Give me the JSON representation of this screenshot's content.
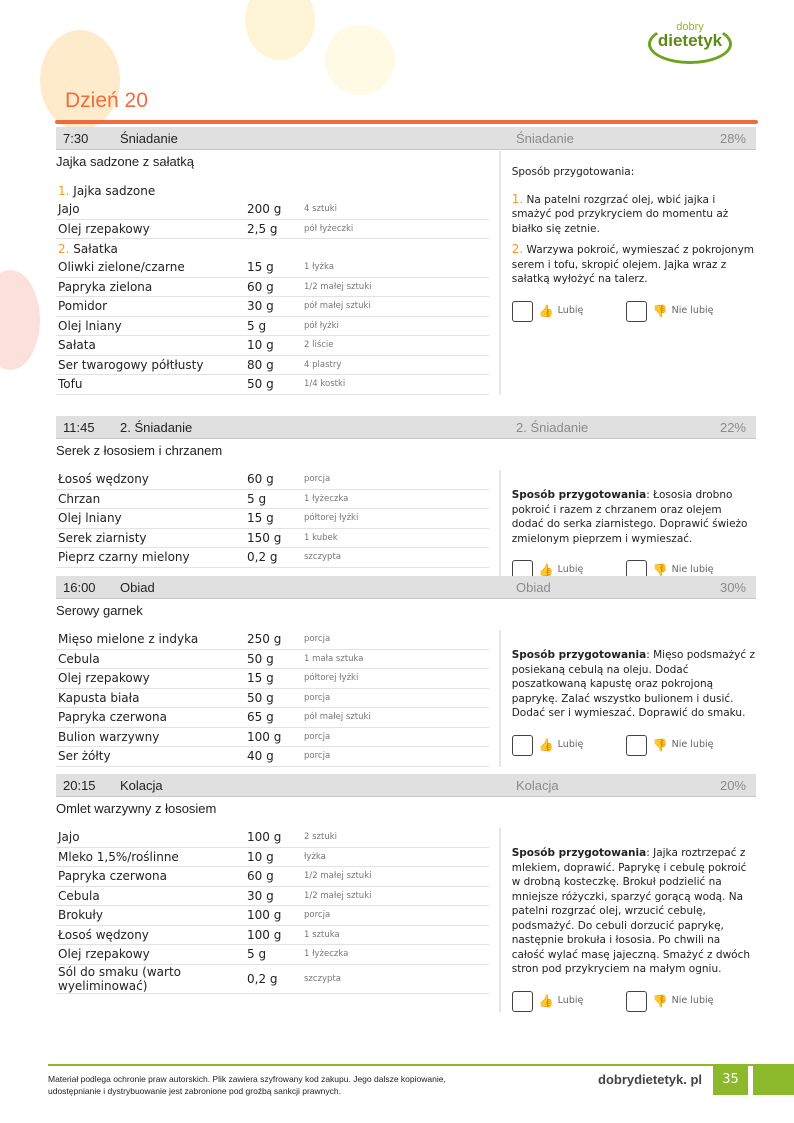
{
  "brand": {
    "logo_top": "dobry",
    "logo_bottom": "dietetyk",
    "accent": "#f26b3a",
    "green": "#8cb82b"
  },
  "page_title": "Dzień 20",
  "meals": [
    {
      "time": "7:30",
      "name": "Śniadanie",
      "category": "Śniadanie",
      "percent": "28%",
      "dish": "Jajka sadzone z sałatką",
      "groups": [
        {
          "num": "1.",
          "label": "Jajka sadzone",
          "items": [
            [
              "Jajo",
              "200 g",
              "4 sztuki"
            ],
            [
              "Olej rzepakowy",
              "2,5 g",
              "pół łyżeczki"
            ]
          ]
        },
        {
          "num": "2.",
          "label": "Sałatka",
          "items": [
            [
              "Oliwki zielone/czarne",
              "15 g",
              "1 łyżka"
            ],
            [
              "Papryka zielona",
              "60 g",
              "1/2 małej sztuki"
            ],
            [
              "Pomidor",
              "30 g",
              "pół małej sztuki"
            ],
            [
              "Olej lniany",
              "5 g",
              "pół łyżki"
            ],
            [
              "Sałata",
              "10 g",
              "2 liście"
            ],
            [
              "Ser twarogowy półtłusty",
              "80 g",
              "4 plastry"
            ],
            [
              "Tofu",
              "50 g",
              "1/4 kostki"
            ]
          ]
        }
      ],
      "prep_label": "Sposób przygotowania:",
      "prep_steps": [
        {
          "num": "1.",
          "text": "Na patelni rozgrzać olej, wbić jajka i smażyć pod przykryciem do momentu aż białko się zetnie."
        },
        {
          "num": "2.",
          "text": "Warzywa pokroić, wymieszać z pokrojonym serem i tofu, skropić olejem. Jajka wraz z sałatką wyłożyć na talerz."
        }
      ],
      "like": "Lubię",
      "dislike": "Nie lubię"
    },
    {
      "time": "11:45",
      "name": "2. Śniadanie",
      "category": "2. Śniadanie",
      "percent": "22%",
      "dish": "Serek z łososiem i chrzanem",
      "groups": [
        {
          "num": "",
          "label": "",
          "items": [
            [
              "Łosoś wędzony",
              "60 g",
              "porcja"
            ],
            [
              "Chrzan",
              "5 g",
              "1 łyżeczka"
            ],
            [
              "Olej lniany",
              "15 g",
              "półtorej łyżki"
            ],
            [
              "Serek ziarnisty",
              "150 g",
              "1 kubek"
            ],
            [
              "Pieprz czarny mielony",
              "0,2 g",
              "szczypta"
            ]
          ]
        }
      ],
      "prep_label": "Sposób przygotowania",
      "prep_text": ": Łososia drobno pokroić i razem z chrzanem oraz olejem dodać do serka ziarnistego. Doprawić świeżo zmielonym pieprzem i wymieszać.",
      "like": "Lubię",
      "dislike": "Nie lubię"
    },
    {
      "time": "16:00",
      "name": "Obiad",
      "category": "Obiad",
      "percent": "30%",
      "dish": "Serowy garnek",
      "groups": [
        {
          "num": "",
          "label": "",
          "items": [
            [
              "Mięso mielone z indyka",
              "250 g",
              "porcja"
            ],
            [
              "Cebula",
              "50 g",
              "1 mała sztuka"
            ],
            [
              "Olej rzepakowy",
              "15 g",
              "półtorej łyżki"
            ],
            [
              "Kapusta biała",
              "50 g",
              "porcja"
            ],
            [
              "Papryka czerwona",
              "65 g",
              "pół małej sztuki"
            ],
            [
              "Bulion warzywny",
              "100 g",
              "porcja"
            ],
            [
              "Ser żółty",
              "40 g",
              "porcja"
            ]
          ]
        }
      ],
      "prep_label": "Sposób przygotowania",
      "prep_text": ": Mięso podsmażyć z posiekaną cebulą na oleju. Dodać poszatkowaną kapustę oraz pokrojoną paprykę. Zalać wszystko bulionem i dusić. Dodać ser i wymieszać. Doprawić do smaku.",
      "like": "Lubię",
      "dislike": "Nie lubię"
    },
    {
      "time": "20:15",
      "name": "Kolacja",
      "category": "Kolacja",
      "percent": "20%",
      "dish": "Omlet warzywny z łososiem",
      "groups": [
        {
          "num": "",
          "label": "",
          "items": [
            [
              "Jajo",
              "100 g",
              "2 sztuki"
            ],
            [
              "Mleko 1,5%/roślinne",
              "10 g",
              "łyżka"
            ],
            [
              "Papryka czerwona",
              "60 g",
              "1/2 małej sztuki"
            ],
            [
              "Cebula",
              "30 g",
              "1/2 małej sztuki"
            ],
            [
              "Brokuły",
              "100 g",
              "porcja"
            ],
            [
              "Łosoś wędzony",
              "100 g",
              "1 sztuka"
            ],
            [
              "Olej rzepakowy",
              "5 g",
              "1 łyżeczka"
            ],
            [
              "Sól do smaku (warto wyeliminować)",
              "0,2 g",
              "szczypta"
            ]
          ]
        }
      ],
      "prep_label": "Sposób przygotowania",
      "prep_text": ": Jajka roztrzepać z mlekiem, doprawić. Paprykę i cebulę pokroić w drobną kosteczkę. Brokuł podzielić na mniejsze różyczki, sparzyć gorącą wodą. Na patelni rozgrzać olej, wrzucić cebulę, podsmażyć. Do cebuli dorzucić paprykę, następnie brokuła i łososia. Po chwili na całość wylać masę jajeczną. Smażyć z dwóch stron pod przykryciem na małym ogniu.",
      "like": "Lubię",
      "dislike": "Nie lubię"
    }
  ],
  "footer": {
    "copyright": "Materiał podlega ochronie praw autorskich. Plik zawiera szyfrowany kod zakupu. Jego dalsze kopiowanie, udostępnianie i dystrybuowanie jest zabronione pod groźbą sankcji prawnych.",
    "site": "dobrydietetyk. pl",
    "page_number": "35"
  }
}
